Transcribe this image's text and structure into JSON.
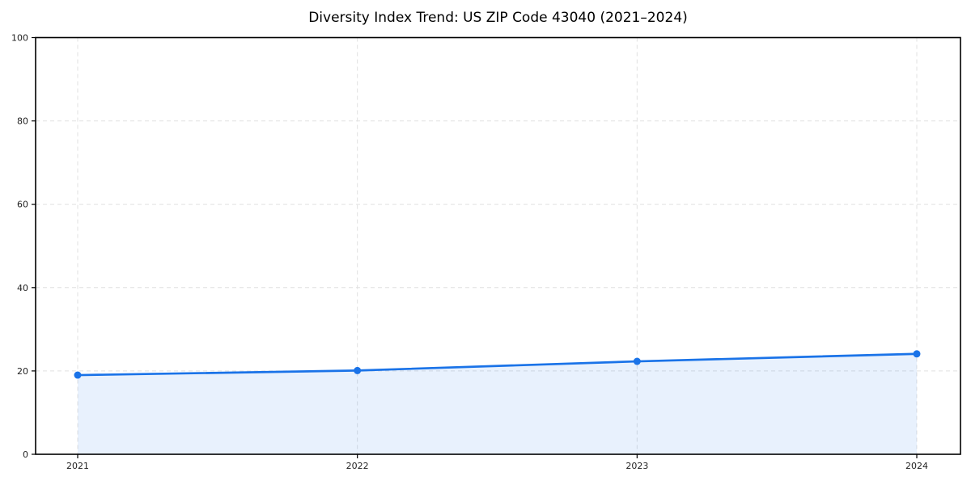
{
  "figure": {
    "background": "#ffffff"
  },
  "chart_data": {
    "type": "area",
    "title": "Diversity Index Trend: US ZIP Code 43040 (2021–2024)",
    "categories": [
      "2021",
      "2022",
      "2023",
      "2024"
    ],
    "series": [
      {
        "name": "Diversity Index",
        "values": [
          19.0,
          20.1,
          22.3,
          24.1
        ]
      }
    ],
    "xlabel": "",
    "ylabel": "",
    "ylim": [
      0,
      100
    ],
    "yticks": [
      0,
      20,
      40,
      60,
      80,
      100
    ],
    "grid": {
      "visible": true,
      "style": "dashed",
      "color": "#e0e0e0"
    },
    "legend": "none",
    "marker": "circle",
    "style": {
      "line_color": "#1a73e8",
      "fill_color": "rgba(26,115,232,0.10)",
      "marker_color": "#1a73e8",
      "spine_color": "#000000",
      "tick_color": "#000000",
      "tick_label_color": "#1f1f1f",
      "title_color": "#000000"
    }
  }
}
